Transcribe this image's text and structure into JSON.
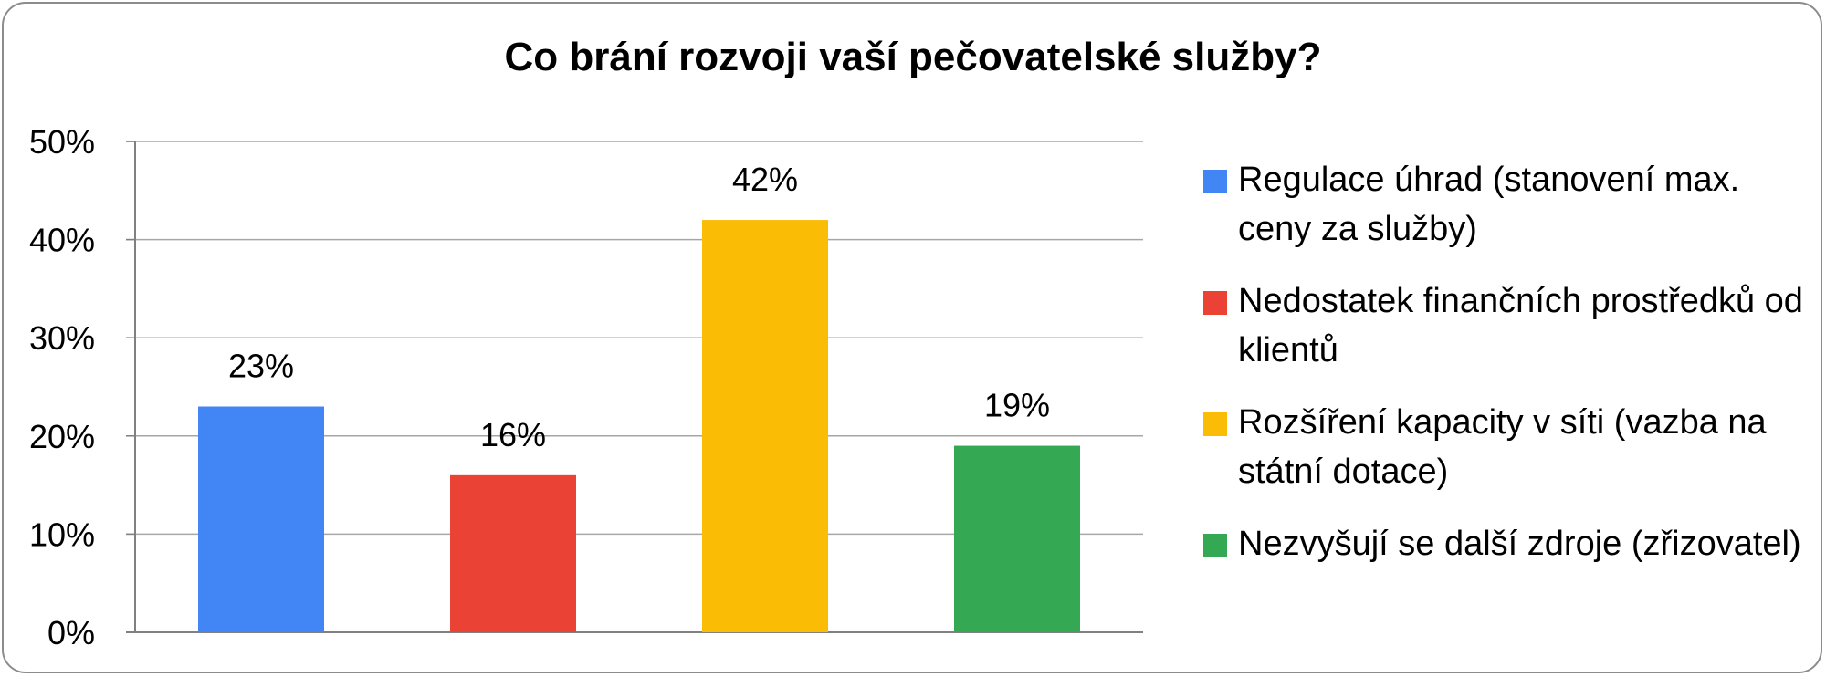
{
  "chart_data": {
    "type": "bar",
    "title": "Co brání rozvoji vaší pečovatelské služby?",
    "categories": [
      "Regulace úhrad (stanovení max. ceny za služby)",
      "Nedostatek finančních prostředků od klientů",
      "Rozšíření kapacity v síti (vazba na státní dotace)",
      "Nezvyšují se další zdroje (zřizovatel)"
    ],
    "values": [
      23,
      16,
      42,
      19
    ],
    "value_labels": [
      "23%",
      "16%",
      "42%",
      "19%"
    ],
    "colors": [
      "#4285f4",
      "#ea4335",
      "#fbbc05",
      "#34a853"
    ],
    "ylim": [
      0,
      50
    ],
    "yticks": [
      "0%",
      "10%",
      "20%",
      "30%",
      "40%",
      "50%"
    ],
    "grid": true,
    "legend_position": "right"
  }
}
